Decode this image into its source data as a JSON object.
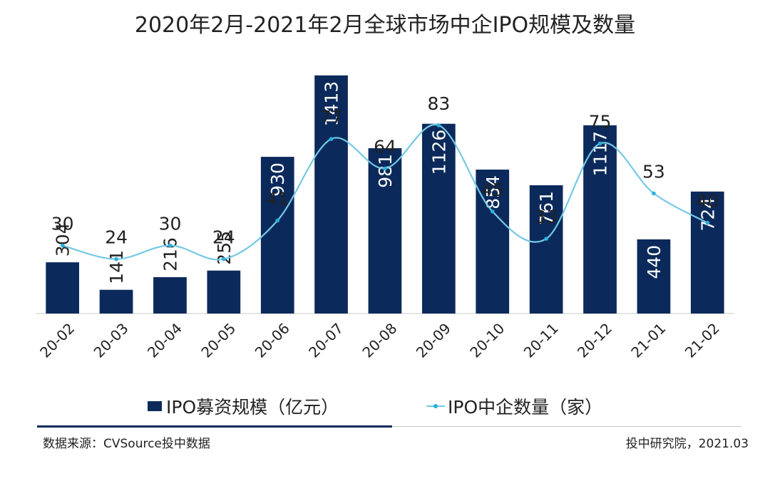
{
  "chart_data": {
    "type": "bar",
    "title": "2020年2月-2021年2月全球市场中企IPO规模及数量",
    "categories": [
      "20-02",
      "20-03",
      "20-04",
      "20-05",
      "20-06",
      "20-07",
      "20-08",
      "20-09",
      "20-10",
      "20-11",
      "20-12",
      "21-01",
      "21-02"
    ],
    "series": [
      {
        "name": "IPO募资规模（亿元）",
        "type": "bar",
        "color": "#0b2a5b",
        "values": [
          304,
          141,
          216,
          255,
          930,
          1413,
          981,
          1126,
          854,
          761,
          1117,
          440,
          724
        ]
      },
      {
        "name": "IPO中企数量（家）",
        "type": "line",
        "color": "#74c9e5",
        "values": [
          30,
          24,
          30,
          24,
          41,
          77,
          64,
          83,
          45,
          33,
          75,
          53,
          40
        ]
      }
    ],
    "bar_ylim": [
      0,
      1480
    ],
    "line_ylim": [
      0,
      110
    ],
    "grid": false,
    "legend_position": "bottom"
  },
  "footer": {
    "source": "数据来源：CVSource投中数据",
    "credit": "投中研究院，2021.03"
  }
}
